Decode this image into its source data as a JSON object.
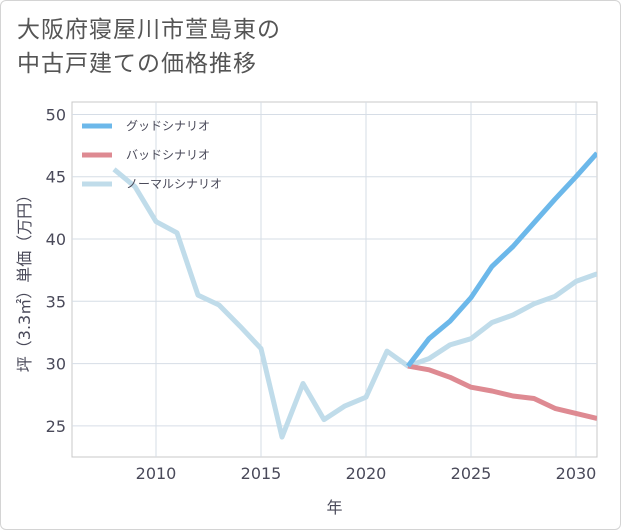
{
  "chart_data": {
    "type": "line",
    "title": "大阪府寝屋川市萱島東の中古戸建ての価格推移",
    "title_lines": [
      "大阪府寝屋川市萱島東の",
      "中古戸建ての価格推移"
    ],
    "xlabel": "年",
    "ylabel": "坪（3.3㎡）単価（万円）",
    "xlim": [
      2006,
      2031
    ],
    "ylim": [
      22.5,
      51
    ],
    "xticks": [
      2010,
      2015,
      2020,
      2025,
      2030
    ],
    "yticks": [
      25,
      30,
      35,
      40,
      45,
      50
    ],
    "grid": true,
    "legend_position": "top-left",
    "series": [
      {
        "name": "グッドシナリオ",
        "color": "#6cb8ea",
        "x": [
          2022,
          2023,
          2024,
          2025,
          2026,
          2027,
          2028,
          2029,
          2030,
          2031
        ],
        "y": [
          29.8,
          32.0,
          33.4,
          35.3,
          37.8,
          39.4,
          41.3,
          43.2,
          45.0,
          46.9
        ]
      },
      {
        "name": "バッドシナリオ",
        "color": "#de8a92",
        "x": [
          2022,
          2023,
          2024,
          2025,
          2026,
          2027,
          2028,
          2029,
          2030,
          2031
        ],
        "y": [
          29.8,
          29.5,
          28.9,
          28.1,
          27.8,
          27.4,
          27.2,
          26.4,
          26.0,
          25.6
        ]
      },
      {
        "name": "ノーマルシナリオ",
        "color": "#c0dcea",
        "x": [
          2008,
          2009,
          2010,
          2011,
          2012,
          2013,
          2014,
          2015,
          2016,
          2017,
          2018,
          2019,
          2020,
          2021,
          2022,
          2023,
          2024,
          2025,
          2026,
          2027,
          2028,
          2029,
          2030,
          2031
        ],
        "y": [
          45.6,
          44.2,
          41.4,
          40.5,
          35.5,
          34.7,
          33.0,
          31.2,
          24.1,
          28.4,
          25.5,
          26.6,
          27.3,
          31.0,
          29.8,
          30.4,
          31.5,
          32.0,
          33.3,
          33.9,
          34.8,
          35.4,
          36.6,
          37.2
        ]
      }
    ]
  }
}
